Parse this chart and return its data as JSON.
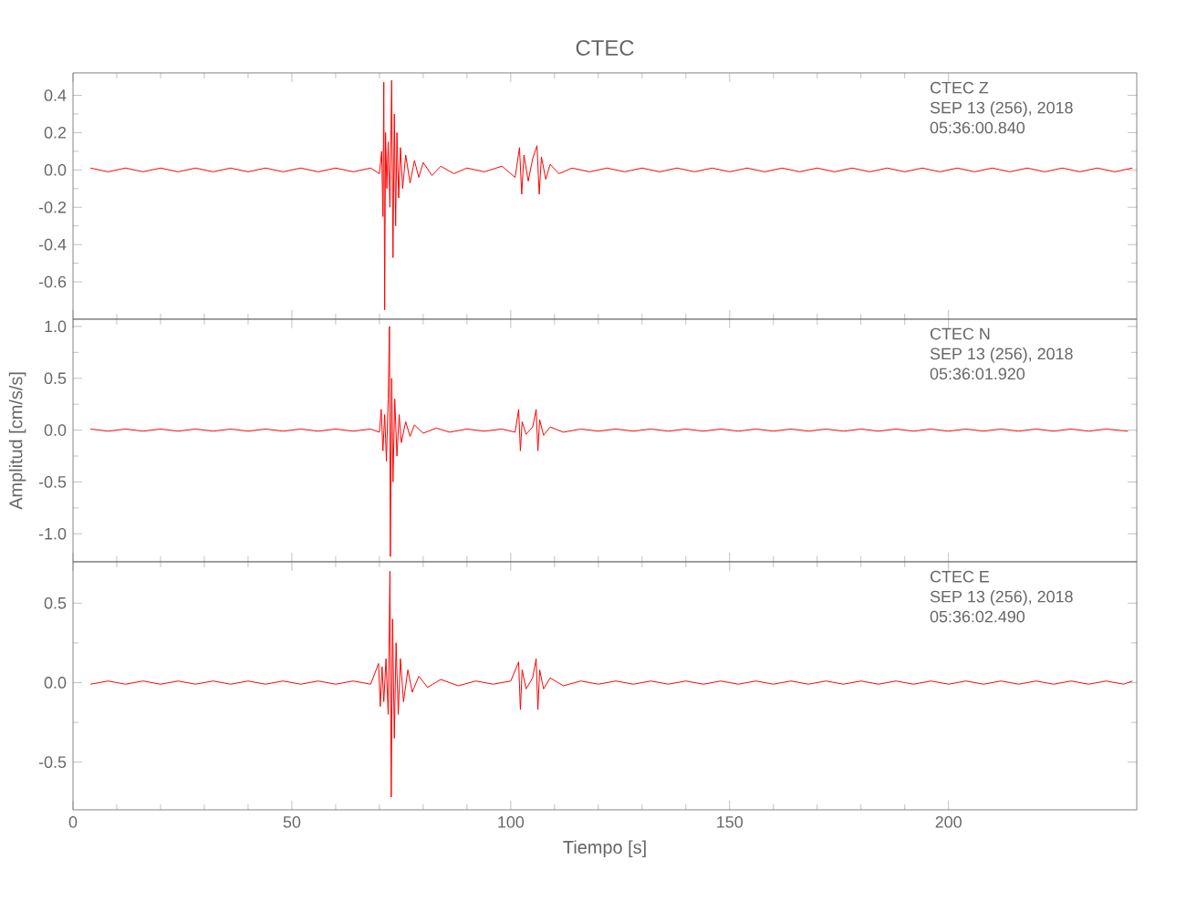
{
  "chart_data": [
    {
      "type": "line",
      "title": "CTEC",
      "xlim": [
        0,
        243
      ],
      "ylim": [
        -0.8,
        0.52
      ],
      "xticks": [
        0,
        50,
        100,
        150,
        200
      ],
      "yticks": [
        -0.6,
        -0.4,
        -0.2,
        {
          "value": 0,
          "label": "0.0"
        },
        0.2,
        0.4
      ],
      "tick_labels": "y",
      "annotations": [
        "CTEC   Z",
        "SEP 13 (256), 2018",
        "05:36:00.840"
      ],
      "series": [
        {
          "color": "#ff0000",
          "x": [
            4,
            8,
            12,
            16,
            20,
            24,
            28,
            32,
            36,
            40,
            44,
            48,
            52,
            56,
            60,
            64,
            68,
            70,
            70.5,
            70.8,
            71.0,
            71.2,
            71.4,
            71.7,
            72,
            72.4,
            72.8,
            73.1,
            73.4,
            73.7,
            74,
            74.4,
            74.8,
            75.3,
            76,
            77,
            78,
            79,
            80,
            82,
            84,
            87,
            90,
            94,
            98,
            101,
            102,
            102.5,
            103,
            104,
            105,
            106,
            106.5,
            107,
            108,
            109,
            111,
            114,
            118,
            122,
            126,
            130,
            134,
            138,
            142,
            146,
            150,
            154,
            158,
            162,
            166,
            170,
            174,
            178,
            182,
            186,
            190,
            194,
            198,
            202,
            206,
            210,
            214,
            218,
            222,
            226,
            230,
            234,
            238,
            242
          ],
          "values": [
            0.01,
            -0.01,
            0.01,
            -0.01,
            0.01,
            -0.01,
            0.01,
            -0.01,
            0.01,
            -0.01,
            0.01,
            -0.01,
            0.01,
            -0.01,
            0.01,
            -0.01,
            0.01,
            -0.02,
            0.1,
            -0.25,
            0.47,
            -0.75,
            0.2,
            -0.1,
            0.15,
            -0.2,
            0.48,
            -0.47,
            0.3,
            -0.3,
            0.2,
            -0.15,
            0.12,
            -0.1,
            0.08,
            -0.07,
            0.05,
            -0.04,
            0.04,
            -0.03,
            0.02,
            -0.02,
            0.01,
            -0.01,
            0.02,
            -0.04,
            0.12,
            -0.13,
            0.08,
            -0.06,
            0.06,
            0.13,
            -0.13,
            0.07,
            -0.05,
            0.03,
            -0.02,
            0.01,
            -0.01,
            0.01,
            -0.01,
            0.01,
            -0.01,
            0.01,
            -0.01,
            0.01,
            -0.01,
            0.01,
            -0.01,
            0.01,
            -0.01,
            0.01,
            -0.01,
            0.01,
            -0.01,
            0.01,
            -0.01,
            0.01,
            -0.01,
            0.01,
            -0.01,
            0.01,
            -0.01,
            0.01,
            -0.01,
            0.01,
            -0.01,
            0.01,
            -0.01,
            0.01
          ]
        }
      ]
    },
    {
      "type": "line",
      "ylabel": "Amplitud [cm/s/s]",
      "xlim": [
        0,
        243
      ],
      "ylim": [
        -1.27,
        1.07
      ],
      "xticks": [
        0,
        50,
        100,
        150,
        200
      ],
      "yticks": [
        {
          "value": -1,
          "label": "-1.0"
        },
        -0.5,
        {
          "value": 0,
          "label": "0.0"
        },
        0.5,
        {
          "value": 1,
          "label": "1.0"
        }
      ],
      "tick_labels": "y",
      "annotations": [
        "CTEC   N",
        "SEP 13 (256), 2018",
        "05:36:01.920"
      ],
      "series": [
        {
          "color": "#ff0000",
          "x": [
            4,
            8,
            12,
            16,
            20,
            24,
            28,
            32,
            36,
            40,
            44,
            48,
            52,
            56,
            60,
            64,
            68,
            70,
            70.4,
            70.8,
            71.2,
            71.6,
            72.0,
            72.3,
            72.5,
            72.8,
            73.1,
            73.5,
            74,
            74.5,
            75,
            76,
            77,
            78,
            80,
            83,
            86,
            90,
            94,
            98,
            101,
            101.8,
            102.2,
            102.6,
            103.5,
            105,
            105.8,
            106.2,
            106.6,
            107.5,
            109,
            112,
            116,
            120,
            124,
            128,
            132,
            136,
            140,
            144,
            148,
            152,
            156,
            160,
            164,
            168,
            172,
            176,
            180,
            184,
            188,
            192,
            196,
            200,
            204,
            208,
            212,
            216,
            220,
            224,
            228,
            232,
            236,
            241
          ],
          "values": [
            0.01,
            -0.01,
            0.01,
            -0.01,
            0.01,
            -0.01,
            0.01,
            -0.01,
            0.01,
            -0.01,
            0.01,
            -0.01,
            0.01,
            -0.01,
            0.01,
            -0.01,
            0.01,
            -0.02,
            0.2,
            -0.2,
            0.15,
            -0.3,
            0.3,
            1.0,
            -1.22,
            0.5,
            -0.5,
            0.3,
            -0.25,
            0.15,
            -0.12,
            0.08,
            -0.06,
            0.05,
            -0.03,
            0.02,
            -0.02,
            0.01,
            -0.01,
            0.01,
            -0.02,
            0.2,
            -0.2,
            0.08,
            -0.04,
            0.03,
            0.2,
            -0.2,
            0.1,
            -0.05,
            0.03,
            -0.02,
            0.01,
            -0.01,
            0.01,
            -0.01,
            0.01,
            -0.01,
            0.01,
            -0.01,
            0.01,
            -0.01,
            0.01,
            -0.01,
            0.01,
            -0.01,
            0.01,
            -0.01,
            0.01,
            -0.01,
            0.01,
            -0.01,
            0.01,
            -0.01,
            0.01,
            -0.01,
            0.01,
            -0.01,
            0.01,
            -0.01,
            0.01,
            -0.01,
            0.01,
            -0.01
          ]
        }
      ]
    },
    {
      "type": "line",
      "xlabel": "Tiempo [s]",
      "xlim": [
        0,
        243
      ],
      "ylim": [
        -0.8,
        0.76
      ],
      "xticks": [
        0,
        50,
        100,
        150,
        200
      ],
      "yticks": [
        -0.5,
        {
          "value": 0,
          "label": "0.0"
        },
        0.5
      ],
      "annotations": [
        "CTEC   E",
        "SEP 13 (256), 2018",
        "05:36:02.490"
      ],
      "series": [
        {
          "color": "#ff0000",
          "x": [
            4,
            8,
            12,
            16,
            20,
            24,
            28,
            32,
            36,
            40,
            44,
            48,
            52,
            56,
            60,
            64,
            68,
            69.8,
            70.2,
            70.6,
            71,
            71.5,
            72,
            72.4,
            72.7,
            73,
            73.4,
            73.8,
            74.3,
            74.8,
            75.5,
            76.5,
            77.5,
            79,
            81,
            84,
            88,
            92,
            96,
            100,
            101.8,
            102.2,
            102.6,
            103.5,
            105,
            105.8,
            106.2,
            106.6,
            107.5,
            109,
            112,
            116,
            120,
            124,
            128,
            132,
            136,
            140,
            144,
            148,
            152,
            156,
            160,
            164,
            168,
            172,
            176,
            180,
            184,
            188,
            192,
            196,
            200,
            204,
            208,
            212,
            216,
            220,
            224,
            228,
            232,
            236,
            240,
            242
          ],
          "values": [
            -0.01,
            0.01,
            -0.01,
            0.01,
            -0.01,
            0.01,
            -0.01,
            0.01,
            -0.01,
            0.01,
            -0.01,
            0.01,
            -0.01,
            0.01,
            -0.01,
            0.01,
            -0.01,
            0.12,
            -0.15,
            0.1,
            -0.12,
            0.15,
            -0.2,
            0.7,
            -0.72,
            0.4,
            -0.35,
            0.25,
            -0.2,
            0.15,
            -0.12,
            0.08,
            -0.06,
            0.04,
            -0.03,
            0.02,
            -0.02,
            0.01,
            -0.01,
            0.01,
            0.13,
            -0.17,
            0.08,
            -0.04,
            0.03,
            0.15,
            -0.17,
            0.08,
            -0.04,
            0.03,
            -0.02,
            0.01,
            -0.01,
            0.01,
            -0.01,
            0.01,
            -0.01,
            0.01,
            -0.01,
            0.01,
            -0.01,
            0.01,
            -0.01,
            0.01,
            -0.01,
            0.01,
            -0.01,
            0.01,
            -0.01,
            0.01,
            -0.01,
            0.01,
            -0.01,
            0.01,
            -0.01,
            0.01,
            -0.01,
            0.01,
            -0.01,
            0.01,
            -0.01,
            0.01,
            -0.01,
            0.01
          ]
        }
      ]
    }
  ]
}
